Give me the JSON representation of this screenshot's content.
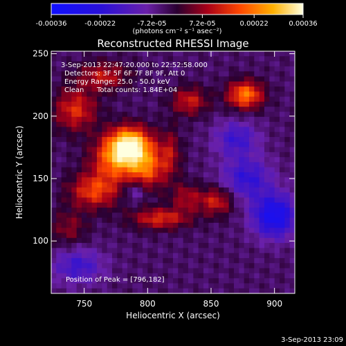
{
  "chart_data": {
    "type": "heatmap",
    "title": "Reconstructed RHESSI Image",
    "xlabel": "Heliocentric X (arcsec)",
    "ylabel": "Heliocentric Y (arcsec)",
    "xlim": [
      724,
      916
    ],
    "ylim": [
      58,
      252
    ],
    "x_ticks": [
      750,
      800,
      850,
      900
    ],
    "y_ticks": [
      100,
      150,
      200,
      250
    ],
    "colorbar": {
      "range": [
        -0.00036,
        0.00036
      ],
      "tick_values": [
        -0.00036,
        -0.00022,
        -7.2e-05,
        7.2e-05,
        0.00022,
        0.00036
      ],
      "tick_labels": [
        "-0.00036",
        "-0.00022",
        "-7.2e-05",
        "7.2e-05",
        "0.00022",
        "0.00036"
      ],
      "units_label": "(photons cm⁻² s⁻¹ asec⁻²)"
    },
    "annotations": {
      "time_range": "3-Sep-2013 22:47:20.000 to 22:52:58.000",
      "detectors": "Detectors: 3F 5F 6F 7F 8F 9F, Att 0",
      "energy": "Energy Range: 25.0 - 50.0 keV",
      "clean": "Clean",
      "counts": "Total counts: 1.84E+04",
      "peak": "Position of Peak = [796,182]"
    },
    "peak": {
      "x": 796,
      "y": 182
    },
    "sources": [
      {
        "x": 786,
        "y": 178,
        "sigma_x": 12,
        "sigma_y": 10,
        "amplitude": 0.00032
      },
      {
        "x": 776,
        "y": 165,
        "sigma_x": 14,
        "sigma_y": 12,
        "amplitude": 0.00024
      },
      {
        "x": 800,
        "y": 158,
        "sigma_x": 10,
        "sigma_y": 12,
        "amplitude": 0.0002
      },
      {
        "x": 758,
        "y": 140,
        "sigma_x": 14,
        "sigma_y": 10,
        "amplitude": 0.0002
      },
      {
        "x": 743,
        "y": 205,
        "sigma_x": 12,
        "sigma_y": 12,
        "amplitude": 0.00018
      },
      {
        "x": 765,
        "y": 232,
        "sigma_x": 14,
        "sigma_y": 8,
        "amplitude": 0.00015
      },
      {
        "x": 833,
        "y": 212,
        "sigma_x": 10,
        "sigma_y": 8,
        "amplitude": 0.00016
      },
      {
        "x": 877,
        "y": 217,
        "sigma_x": 10,
        "sigma_y": 8,
        "amplitude": 0.00026
      },
      {
        "x": 810,
        "y": 118,
        "sigma_x": 16,
        "sigma_y": 6,
        "amplitude": 0.00018
      },
      {
        "x": 854,
        "y": 132,
        "sigma_x": 10,
        "sigma_y": 8,
        "amplitude": 0.00017
      },
      {
        "x": 830,
        "y": 135,
        "sigma_x": 8,
        "sigma_y": 8,
        "amplitude": 0.00012
      },
      {
        "x": 738,
        "y": 110,
        "sigma_x": 10,
        "sigma_y": 10,
        "amplitude": 0.0001
      },
      {
        "x": 818,
        "y": 170,
        "sigma_x": 6,
        "sigma_y": 14,
        "amplitude": 0.00012
      },
      {
        "x": 900,
        "y": 120,
        "sigma_x": 12,
        "sigma_y": 12,
        "amplitude": -0.00026
      },
      {
        "x": 878,
        "y": 150,
        "sigma_x": 14,
        "sigma_y": 12,
        "amplitude": -0.00016
      },
      {
        "x": 745,
        "y": 80,
        "sigma_x": 14,
        "sigma_y": 10,
        "amplitude": -0.00014
      },
      {
        "x": 870,
        "y": 182,
        "sigma_x": 12,
        "sigma_y": 10,
        "amplitude": -0.00014
      },
      {
        "x": 790,
        "y": 140,
        "sigma_x": 6,
        "sigma_y": 6,
        "amplitude": -0.0001
      }
    ]
  },
  "timestamp": "3-Sep-2013 23:09"
}
